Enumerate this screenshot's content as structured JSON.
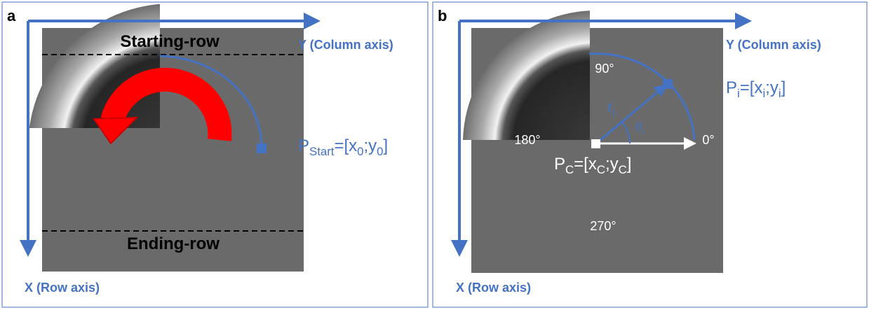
{
  "panels": [
    {
      "letter": "a",
      "y_axis": "Y (Column axis)",
      "x_axis": "X (Row axis)",
      "starting_row": "Starting-row",
      "ending_row": "Ending-row",
      "point_label": [
        "P",
        "Start",
        "=[x",
        "0",
        ";y",
        "0",
        "]"
      ]
    },
    {
      "letter": "b",
      "y_axis": "Y (Column axis)",
      "x_axis": "X (Row axis)",
      "angles": [
        "90°",
        "180°",
        "0°",
        "270°"
      ],
      "radius": [
        "r",
        "i"
      ],
      "theta": [
        "θ",
        "i"
      ],
      "point_label": [
        "P",
        "i",
        "=[x",
        "i",
        ";y",
        "i",
        "]"
      ],
      "center_label": [
        "P",
        "C",
        "=[x",
        "C",
        ";y",
        "C",
        "]"
      ]
    }
  ]
}
